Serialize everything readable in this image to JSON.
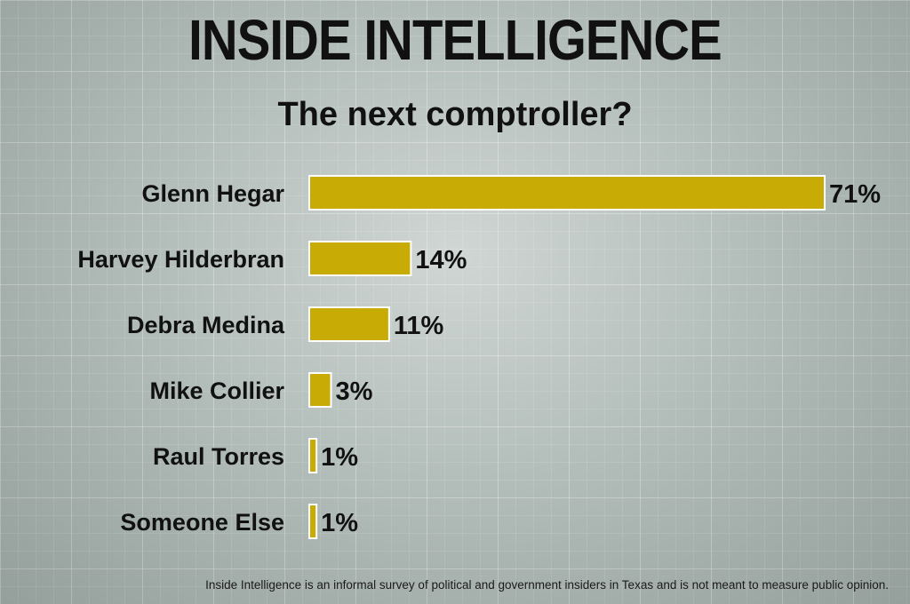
{
  "header": {
    "title": "INSIDE INTELLIGENCE"
  },
  "chart_data": {
    "type": "bar",
    "orientation": "horizontal",
    "title": "The next comptroller?",
    "categories": [
      "Glenn Hegar",
      "Harvey Hilderbran",
      "Debra Medina",
      "Mike Collier",
      "Raul Torres",
      "Someone Else"
    ],
    "values": [
      71,
      14,
      11,
      3,
      1,
      1
    ],
    "value_labels": [
      "71%",
      "14%",
      "11%",
      "3%",
      "1%",
      "1%"
    ],
    "xlim": [
      0,
      71
    ],
    "grid": false,
    "bar_color": "#c9ab06"
  },
  "footnote": "Inside Intelligence is an informal survey of political and government insiders in Texas and is not meant to measure public opinion."
}
